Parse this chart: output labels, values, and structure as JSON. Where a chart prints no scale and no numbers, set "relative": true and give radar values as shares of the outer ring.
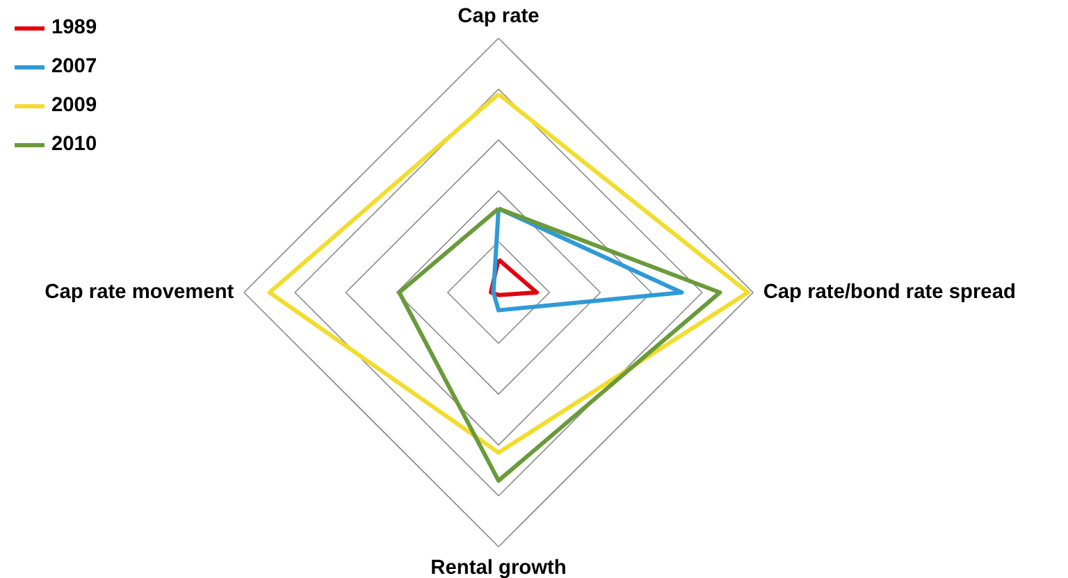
{
  "chart_data": {
    "type": "radar",
    "relative": true,
    "grid": true,
    "legend": "top left",
    "categories": [
      "Cap rate",
      "Cap rate/bond rate spread",
      "Rental growth",
      "Cap rate movement"
    ],
    "series": [
      {
        "name": "1989",
        "color": "#e3000f",
        "values": [
          0.13,
          0.15,
          0.01,
          0.03
        ]
      },
      {
        "name": "2007",
        "color": "#2e9ad6",
        "values": [
          0.33,
          0.72,
          0.07,
          0.02
        ]
      },
      {
        "name": "2009",
        "color": "#f2dc2e",
        "values": [
          0.78,
          0.98,
          0.63,
          0.9
        ]
      },
      {
        "name": "2010",
        "color": "#6a9a3a",
        "values": [
          0.33,
          0.87,
          0.74,
          0.39
        ]
      }
    ]
  }
}
